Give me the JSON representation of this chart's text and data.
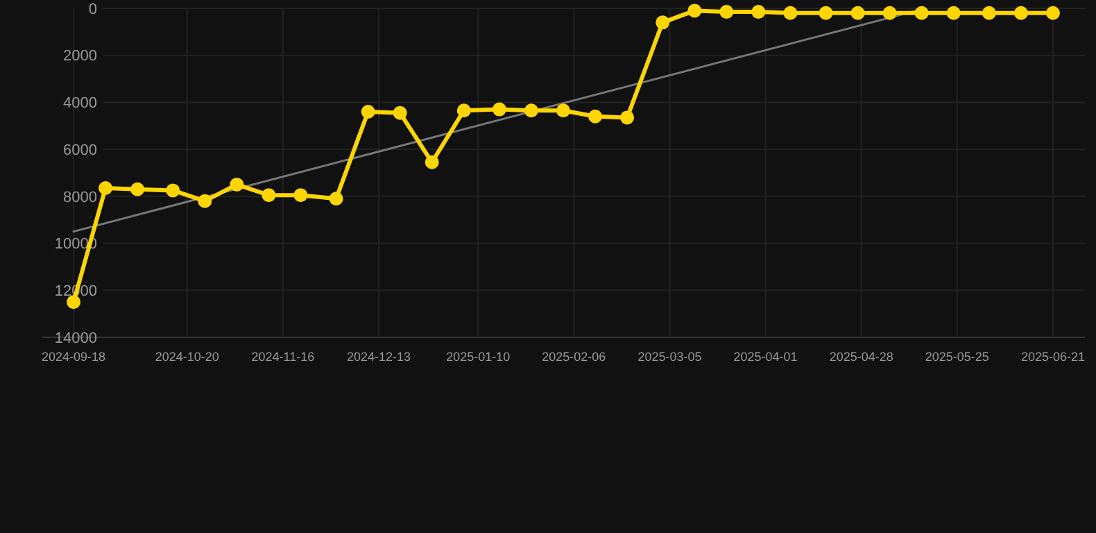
{
  "chart_data": {
    "type": "line",
    "x": [
      "2024-09-18",
      "2024-09-27",
      "2024-10-06",
      "2024-10-16",
      "2024-10-25",
      "2024-11-03",
      "2024-11-12",
      "2024-11-21",
      "2024-12-01",
      "2024-12-10",
      "2024-12-19",
      "2024-12-28",
      "2025-01-06",
      "2025-01-16",
      "2025-01-25",
      "2025-02-03",
      "2025-02-12",
      "2025-02-21",
      "2025-03-03",
      "2025-03-12",
      "2025-03-21",
      "2025-03-30",
      "2025-04-08",
      "2025-04-18",
      "2025-04-27",
      "2025-05-06",
      "2025-05-15",
      "2025-05-24",
      "2025-06-03",
      "2025-06-12",
      "2025-06-21"
    ],
    "series": [
      {
        "color": "#ffd500",
        "marker": "circle",
        "values": [
          12500,
          7650,
          7700,
          7750,
          8200,
          7500,
          7950,
          7950,
          8100,
          4400,
          4450,
          6550,
          4350,
          4300,
          4350,
          4350,
          4600,
          4650,
          600,
          100,
          150,
          150,
          200,
          200,
          200,
          200,
          200,
          200,
          200,
          200,
          200
        ]
      },
      {
        "type": "line",
        "color": "#777777",
        "marker": "none",
        "x": [
          "2024-09-18",
          "2025-05-16"
        ],
        "values": [
          9500,
          0
        ]
      }
    ],
    "xlim": [
      "2024-09-09",
      "2025-06-30"
    ],
    "ylim": [
      14000,
      0
    ],
    "xticks": [
      "2024-09-18",
      "2024-10-20",
      "2024-11-16",
      "2024-12-13",
      "2025-01-10",
      "2025-02-06",
      "2025-03-05",
      "2025-04-01",
      "2025-04-28",
      "2025-05-25",
      "2025-06-21"
    ],
    "yticks": [
      0,
      2000,
      4000,
      6000,
      8000,
      10000,
      12000,
      14000
    ],
    "grid": true
  }
}
